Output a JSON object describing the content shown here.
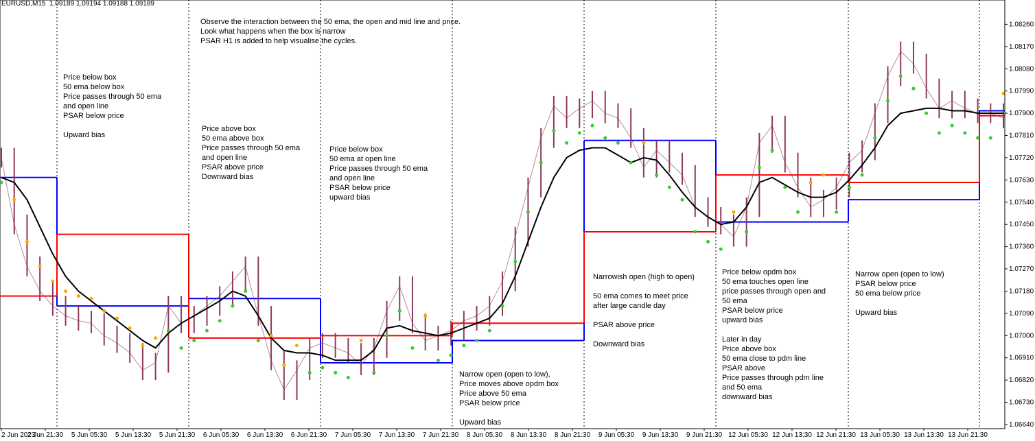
{
  "header": "EURUSD,M15  1.09189 1.09194 1.09188 1.09189",
  "chart_data": {
    "type": "line",
    "symbol": "EURUSD",
    "timeframe": "M15",
    "ylim": [
      1.0664,
      1.083
    ],
    "y_ticks": [
      "1.08260",
      "1.08170",
      "1.08080",
      "1.07990",
      "1.07900",
      "1.07810",
      "1.07720",
      "1.07630",
      "1.07540",
      "1.07450",
      "1.07360",
      "1.07270",
      "1.07180",
      "1.07090",
      "1.07000",
      "1.06910",
      "1.06820",
      "1.06730",
      "1.06640"
    ],
    "x_ticks": [
      "2 Jun 2023",
      "2 Jun 21:30",
      "5 Jun 05:30",
      "5 Jun 13:30",
      "5 Jun 21:30",
      "6 Jun 05:30",
      "6 Jun 13:30",
      "6 Jun 21:30",
      "7 Jun 05:30",
      "7 Jun 13:30",
      "7 Jun 21:30",
      "8 Jun 05:30",
      "8 Jun 13:30",
      "8 Jun 21:30",
      "9 Jun 05:30",
      "9 Jun 13:30",
      "9 Jun 21:30",
      "12 Jun 05:30",
      "12 Jun 13:30",
      "12 Jun 21:30",
      "13 Jun 05:30",
      "13 Jun 13:30",
      "13 Jun 21:30"
    ],
    "colors": {
      "price": "#8b3a5a",
      "ema": "#000000",
      "open_line": "#0000ff",
      "mid_line": "#ff0000",
      "psar_above": "#ffa500",
      "psar_below": "#33cc33"
    },
    "boxes": [
      {
        "open": 1.0764,
        "mid": 1.0716
      },
      {
        "open": 1.0712,
        "mid": 1.0741
      },
      {
        "open": 1.0715,
        "mid": 1.0699
      },
      {
        "open": 1.0689,
        "mid": 1.07
      },
      {
        "open": 1.0698,
        "mid": 1.0705
      },
      {
        "open": 1.0779,
        "mid": 1.0742
      },
      {
        "open": 1.0746,
        "mid": 1.0765
      },
      {
        "open": 1.0755,
        "mid": 1.0762
      },
      {
        "open": 1.0791,
        "mid": 1.0789
      }
    ],
    "series": [
      {
        "name": "price",
        "values": [
          1.0772,
          1.0745,
          1.0728,
          1.0718,
          1.0712,
          1.0708,
          1.0706,
          1.0705,
          1.07,
          1.0697,
          1.0693,
          1.0686,
          1.0689,
          1.0712,
          1.0705,
          1.0708,
          1.0712,
          1.0716,
          1.0722,
          1.0728,
          1.0708,
          1.069,
          1.0678,
          1.0686,
          1.0695,
          1.0697,
          1.0695,
          1.0693,
          1.0688,
          1.0695,
          1.071,
          1.072,
          1.0705,
          1.0698,
          1.07,
          1.0702,
          1.0706,
          1.0708,
          1.0712,
          1.0722,
          1.074,
          1.076,
          1.078,
          1.0793,
          1.0788,
          1.0792,
          1.0795,
          1.079,
          1.0788,
          1.078,
          1.0768,
          1.0775,
          1.077,
          1.0765,
          1.0752,
          1.0748,
          1.0745,
          1.074,
          1.0752,
          1.0778,
          1.0785,
          1.077,
          1.076,
          1.0752,
          1.0755,
          1.076,
          1.077,
          1.0775,
          1.079,
          1.0805,
          1.0815,
          1.081,
          1.08,
          1.0792,
          1.0795,
          1.0792,
          1.079,
          1.079,
          1.0788
        ]
      },
      {
        "name": "ema",
        "values": [
          1.0764,
          1.0762,
          1.0755,
          1.0744,
          1.0733,
          1.0724,
          1.0718,
          1.0714,
          1.071,
          1.0706,
          1.0702,
          1.0698,
          1.0695,
          1.0701,
          1.0705,
          1.0708,
          1.0711,
          1.0714,
          1.0718,
          1.0716,
          1.0708,
          1.0699,
          1.0694,
          1.0693,
          1.0693,
          1.0692,
          1.069,
          1.069,
          1.069,
          1.0694,
          1.0703,
          1.0704,
          1.0702,
          1.0701,
          1.07,
          1.0701,
          1.0703,
          1.0705,
          1.0707,
          1.0713,
          1.0724,
          1.0738,
          1.0752,
          1.0764,
          1.0772,
          1.0775,
          1.0776,
          1.0776,
          1.0773,
          1.077,
          1.0772,
          1.0771,
          1.0765,
          1.0758,
          1.0752,
          1.0748,
          1.0745,
          1.0746,
          1.0752,
          1.0762,
          1.0764,
          1.0761,
          1.0758,
          1.0756,
          1.0756,
          1.0758,
          1.0763,
          1.0769,
          1.0776,
          1.0785,
          1.079,
          1.0791,
          1.0792,
          1.0792,
          1.0791,
          1.0791,
          1.079,
          1.079,
          1.079
        ]
      }
    ]
  },
  "annotations": {
    "top": "Observe the interaction between the 50 ema, the open and mid line and price.\nLook what happens when the box is narrow\nPSAR H1 is added to help visualise the cycles.",
    "a1": "Price below box\n50 ema below box\nPrice passes through 50 ema\nand open line\nPSAR below price\n\nUpward bias",
    "a2": "Price above box\n50 ema above box\nPrice passes through 50 ema\nand open line\nPSAR above price\nDownward bias",
    "a3": "Price below box\n50 ema at open line\nPrice passes through 50 ema\nand open line\nPSAR below price\nupward bias",
    "a4": "Narrow open (open to low),\nPrice moves above opdm box\nPrice above 50 ema\nPSAR below price\n\nUpward bias",
    "a5": "Narrowish open (high to open)\n\n50 ema comes to meet price\nafter large candle day\n\nPSAR above price\n\nDownward bias",
    "a6": "Price below opdm box\n50 ema touches open line\nprice passes through open and\n50 ema\nPSAR below price\nupward bias\n\nLater in day\nPrice above box\n50 ema close to pdm line\nPSAR above\nPrice passes through pdm line\nand 50 ema\ndownward bias",
    "a7": "Narrow open (open to low)\nPSAR below price\n50 ema below price\n\nUpward bias"
  }
}
